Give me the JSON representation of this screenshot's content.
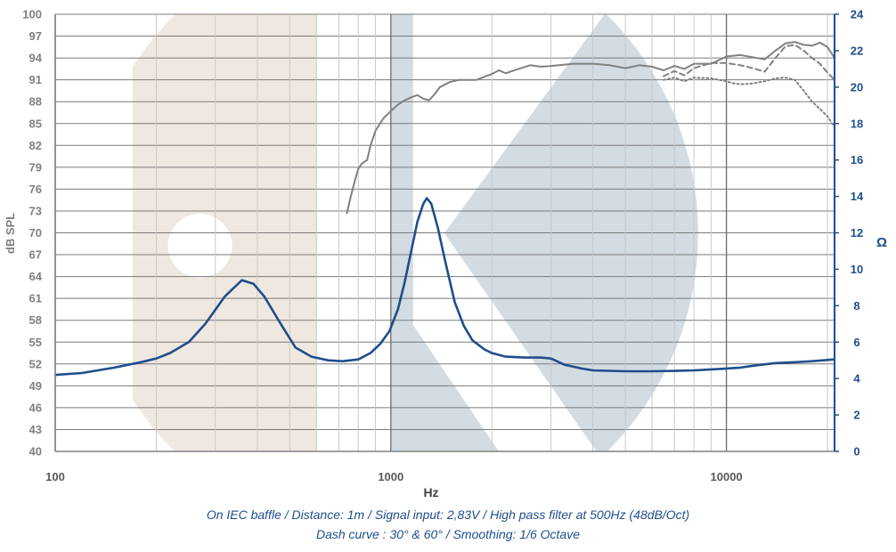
{
  "chart_data": {
    "type": "line",
    "title": "",
    "xlabel": "Hz",
    "ylabel_left": "dB SPL",
    "ylabel_right": "Ω",
    "x_scale": "log",
    "xlim": [
      100,
      21000
    ],
    "ylim_left": [
      40,
      100
    ],
    "ylim_right": [
      0,
      24
    ],
    "grid": true,
    "x_tick_labels": [
      "100",
      "1000",
      "10000"
    ],
    "x_tick_values": [
      100,
      1000,
      10000
    ],
    "y_left_ticks": [
      40,
      43,
      46,
      49,
      52,
      55,
      58,
      61,
      64,
      67,
      70,
      73,
      76,
      79,
      82,
      85,
      88,
      91,
      94,
      97,
      100
    ],
    "y_right_ticks": [
      0,
      2,
      4,
      6,
      8,
      10,
      12,
      14,
      16,
      18,
      20,
      22,
      24
    ],
    "series": [
      {
        "axis": "left",
        "style": "solid",
        "color": "#808080",
        "points": [
          [
            740,
            72.7
          ],
          [
            760,
            75
          ],
          [
            780,
            77
          ],
          [
            800,
            78.8
          ],
          [
            820,
            79.5
          ],
          [
            850,
            80
          ],
          [
            870,
            82
          ],
          [
            900,
            84
          ],
          [
            950,
            85.7
          ],
          [
            1000,
            86.7
          ],
          [
            1050,
            87.6
          ],
          [
            1100,
            88.2
          ],
          [
            1150,
            88.6
          ],
          [
            1200,
            88.9
          ],
          [
            1250,
            88.4
          ],
          [
            1300,
            88.2
          ],
          [
            1350,
            89
          ],
          [
            1400,
            90
          ],
          [
            1500,
            90.7
          ],
          [
            1600,
            91
          ],
          [
            1800,
            91
          ],
          [
            2000,
            91.8
          ],
          [
            2100,
            92.3
          ],
          [
            2200,
            91.9
          ],
          [
            2400,
            92.5
          ],
          [
            2600,
            93
          ],
          [
            2800,
            92.8
          ],
          [
            3000,
            92.9
          ],
          [
            3500,
            93.2
          ],
          [
            4000,
            93.2
          ],
          [
            4500,
            93
          ],
          [
            5000,
            92.6
          ],
          [
            5500,
            93
          ],
          [
            6000,
            92.8
          ],
          [
            6500,
            92.3
          ],
          [
            7000,
            92.9
          ],
          [
            7500,
            92.5
          ],
          [
            8000,
            93.2
          ],
          [
            9000,
            93.2
          ],
          [
            10000,
            94.2
          ],
          [
            11000,
            94.4
          ],
          [
            12000,
            94.1
          ],
          [
            13000,
            93.8
          ],
          [
            14000,
            95
          ],
          [
            15000,
            96
          ],
          [
            16000,
            96.2
          ],
          [
            17000,
            95.8
          ],
          [
            18000,
            95.7
          ],
          [
            19000,
            96.1
          ],
          [
            20000,
            95.5
          ],
          [
            21000,
            94
          ]
        ]
      },
      {
        "axis": "left",
        "style": "dash",
        "color": "#808080",
        "points": [
          [
            6500,
            91.5
          ],
          [
            7000,
            92.2
          ],
          [
            7500,
            91.6
          ],
          [
            8000,
            92.6
          ],
          [
            9000,
            93.3
          ],
          [
            10000,
            93.3
          ],
          [
            11000,
            93
          ],
          [
            12000,
            92.6
          ],
          [
            13000,
            92.1
          ],
          [
            14000,
            94
          ],
          [
            15000,
            95.6
          ],
          [
            16000,
            95.8
          ],
          [
            17000,
            95
          ],
          [
            18000,
            94
          ],
          [
            19000,
            93.2
          ],
          [
            20000,
            92
          ],
          [
            21000,
            91
          ]
        ]
      },
      {
        "axis": "left",
        "style": "dot",
        "color": "#808080",
        "points": [
          [
            6500,
            91
          ],
          [
            7000,
            91.3
          ],
          [
            7500,
            90.8
          ],
          [
            8000,
            91.3
          ],
          [
            9000,
            91.2
          ],
          [
            10000,
            90.8
          ],
          [
            10500,
            90.5
          ],
          [
            11000,
            90.4
          ],
          [
            12000,
            90.5
          ],
          [
            13000,
            90.8
          ],
          [
            14000,
            91.2
          ],
          [
            15000,
            91.3
          ],
          [
            16000,
            91
          ],
          [
            17000,
            89.5
          ],
          [
            18000,
            88
          ],
          [
            19000,
            87
          ],
          [
            20000,
            86
          ],
          [
            21000,
            84.5
          ]
        ]
      },
      {
        "axis": "right",
        "style": "solid",
        "color": "#1f4e8c",
        "points": [
          [
            100,
            4.2
          ],
          [
            120,
            4.3
          ],
          [
            150,
            4.6
          ],
          [
            180,
            4.9
          ],
          [
            200,
            5.1
          ],
          [
            220,
            5.4
          ],
          [
            250,
            6
          ],
          [
            280,
            7
          ],
          [
            320,
            8.5
          ],
          [
            360,
            9.4
          ],
          [
            390,
            9.2
          ],
          [
            420,
            8.5
          ],
          [
            470,
            7
          ],
          [
            520,
            5.7
          ],
          [
            580,
            5.2
          ],
          [
            650,
            5
          ],
          [
            720,
            4.95
          ],
          [
            800,
            5.05
          ],
          [
            870,
            5.4
          ],
          [
            930,
            5.9
          ],
          [
            990,
            6.6
          ],
          [
            1050,
            7.8
          ],
          [
            1100,
            9.3
          ],
          [
            1150,
            11
          ],
          [
            1200,
            12.6
          ],
          [
            1250,
            13.6
          ],
          [
            1280,
            13.9
          ],
          [
            1320,
            13.6
          ],
          [
            1380,
            12.3
          ],
          [
            1450,
            10.5
          ],
          [
            1550,
            8.2
          ],
          [
            1650,
            6.9
          ],
          [
            1750,
            6.1
          ],
          [
            1900,
            5.6
          ],
          [
            2000,
            5.4
          ],
          [
            2200,
            5.2
          ],
          [
            2500,
            5.15
          ],
          [
            2800,
            5.15
          ],
          [
            3000,
            5.1
          ],
          [
            3300,
            4.75
          ],
          [
            3700,
            4.55
          ],
          [
            4000,
            4.45
          ],
          [
            5000,
            4.4
          ],
          [
            6000,
            4.4
          ],
          [
            7000,
            4.42
          ],
          [
            8000,
            4.45
          ],
          [
            9000,
            4.5
          ],
          [
            10000,
            4.55
          ],
          [
            11000,
            4.6
          ],
          [
            12000,
            4.7
          ],
          [
            14000,
            4.85
          ],
          [
            16000,
            4.9
          ],
          [
            18000,
            4.95
          ],
          [
            21000,
            5.05
          ]
        ]
      }
    ],
    "annotations": [
      "On IEC baffle / Distance: 1m / Signal input: 2,83V / High pass filter at 500Hz (48dB/Oct)",
      "Dash curve : 30° & 60° / Smoothing: 1/6 Octave"
    ],
    "colors": {
      "spl": "#808080",
      "impedance": "#1f4e8c",
      "grid": "#7a7a7a",
      "watermark_beige": "#efe8e0",
      "watermark_blue": "#d3dce3"
    }
  }
}
